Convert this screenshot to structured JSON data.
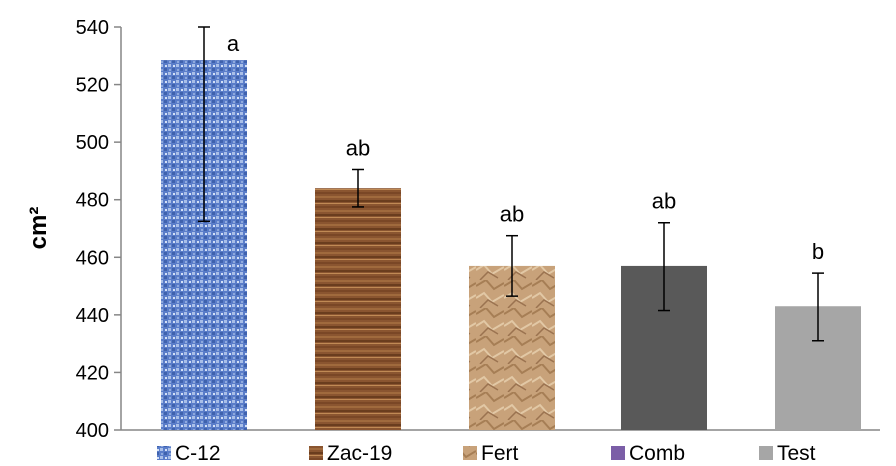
{
  "chart_data": {
    "type": "bar",
    "ylabel": "cm²",
    "ylim": [
      400,
      540
    ],
    "yticks": [
      400,
      420,
      440,
      460,
      480,
      500,
      520,
      540
    ],
    "categories": [
      "C-12",
      "Zac-19",
      "Fert",
      "Comb",
      "Test"
    ],
    "values": [
      528.5,
      484,
      457,
      457,
      443
    ],
    "error_low": [
      472.5,
      477.5,
      446.5,
      441.5,
      431
    ],
    "error_high": [
      540,
      490.5,
      467.5,
      472,
      454.5
    ],
    "significance_labels": [
      "a",
      "ab",
      "ab",
      "ab",
      "b"
    ],
    "legend_position": "bottom",
    "grid": false,
    "colors": {
      "C-12": "#5a7dc9",
      "Zac-19": "#8a5530",
      "Fert": "#c8a27a",
      "Comb": "#595959",
      "Test": "#a6a6a6",
      "Comb_legend": "#7b5ea7"
    }
  }
}
